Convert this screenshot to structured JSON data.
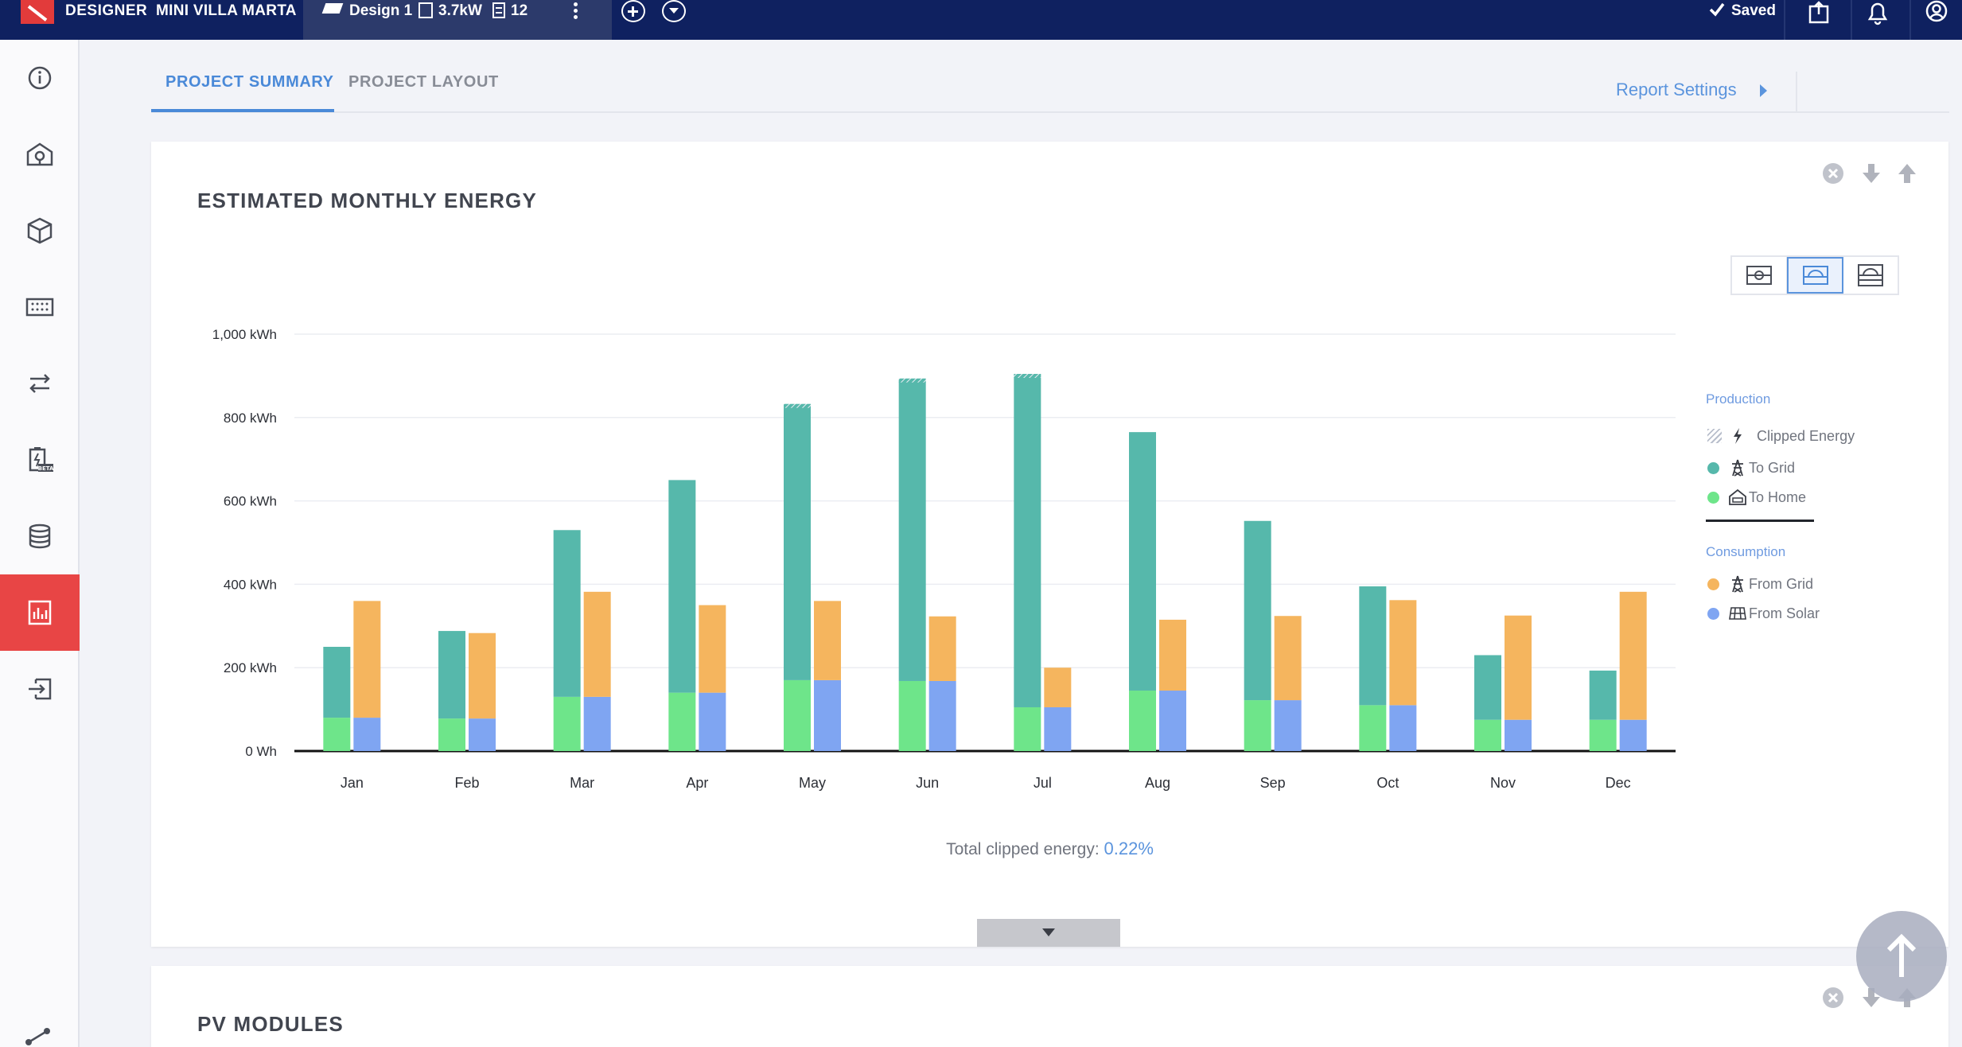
{
  "topbar": {
    "brand": "DESIGNER",
    "project_name": "MINI VILLA MARTA",
    "design_name": "Design 1",
    "system_size": "3.7kW",
    "module_count": "12",
    "saved_label": "Saved",
    "icons": [
      "logo-icon",
      "design-icon",
      "system-size-icon",
      "module-count-icon",
      "kebab-menu-icon",
      "add-icon",
      "dropdown-icon",
      "check-icon",
      "export-icon",
      "bell-icon",
      "account-icon"
    ]
  },
  "sidebar": {
    "items": [
      {
        "name": "info-icon",
        "active": false
      },
      {
        "name": "house-plug-icon",
        "active": false
      },
      {
        "name": "cube-icon",
        "active": false
      },
      {
        "name": "grid-icon",
        "active": false
      },
      {
        "name": "arrows-icon",
        "active": false
      },
      {
        "name": "battery-beta-icon",
        "active": false,
        "badge": "BETA"
      },
      {
        "name": "database-icon",
        "active": false
      },
      {
        "name": "report-icon",
        "active": true
      },
      {
        "name": "export-arrow-icon",
        "active": false
      }
    ],
    "active_color": "#e84545"
  },
  "tabs": {
    "summary": "PROJECT SUMMARY",
    "layout": "PROJECT LAYOUT",
    "active": "PROJECT SUMMARY"
  },
  "report_settings": "Report Settings",
  "energy_card": {
    "title": "ESTIMATED MONTHLY ENERGY",
    "clipped_label": "Total clipped energy: ",
    "clipped_value": "0.22%"
  },
  "legend": {
    "production_heading": "Production",
    "clipped": "Clipped Energy",
    "to_grid": "To Grid",
    "to_home": "To Home",
    "consumption_heading": "Consumption",
    "from_grid": "From Grid",
    "from_solar": "From Solar"
  },
  "colors": {
    "to_grid": "#56b8ab",
    "to_home": "#6ee58a",
    "from_grid": "#f5b55e",
    "from_solar": "#7fa5f2",
    "accent": "#4a89d8",
    "topbar": "#0f2160"
  },
  "chart_data": {
    "type": "bar",
    "stacked": true,
    "categories": [
      "Jan",
      "Feb",
      "Mar",
      "Apr",
      "May",
      "Jun",
      "Jul",
      "Aug",
      "Sep",
      "Oct",
      "Nov",
      "Dec"
    ],
    "yticks": [
      "0 Wh",
      "200 kWh",
      "400 kWh",
      "600 kWh",
      "800 kWh",
      "1,000 kWh"
    ],
    "ylim": [
      0,
      1000
    ],
    "unit": "kWh",
    "grid": true,
    "legend_position": "right",
    "series": [
      {
        "name": "To Home",
        "group": "production",
        "values": [
          80,
          78,
          130,
          140,
          170,
          168,
          105,
          145,
          122,
          110,
          75,
          75
        ]
      },
      {
        "name": "To Grid",
        "group": "production",
        "values": [
          170,
          210,
          400,
          510,
          655,
          718,
          792,
          620,
          430,
          285,
          155,
          118
        ]
      },
      {
        "name": "From Solar",
        "group": "consumption",
        "values": [
          80,
          78,
          130,
          140,
          170,
          168,
          105,
          145,
          122,
          110,
          75,
          75
        ]
      },
      {
        "name": "From Grid",
        "group": "consumption",
        "values": [
          280,
          205,
          252,
          210,
          190,
          155,
          95,
          170,
          202,
          252,
          250,
          307
        ]
      }
    ],
    "clipped_months": [
      "May",
      "Jun",
      "Jul"
    ]
  },
  "modules_card": {
    "title": "PV MODULES"
  }
}
